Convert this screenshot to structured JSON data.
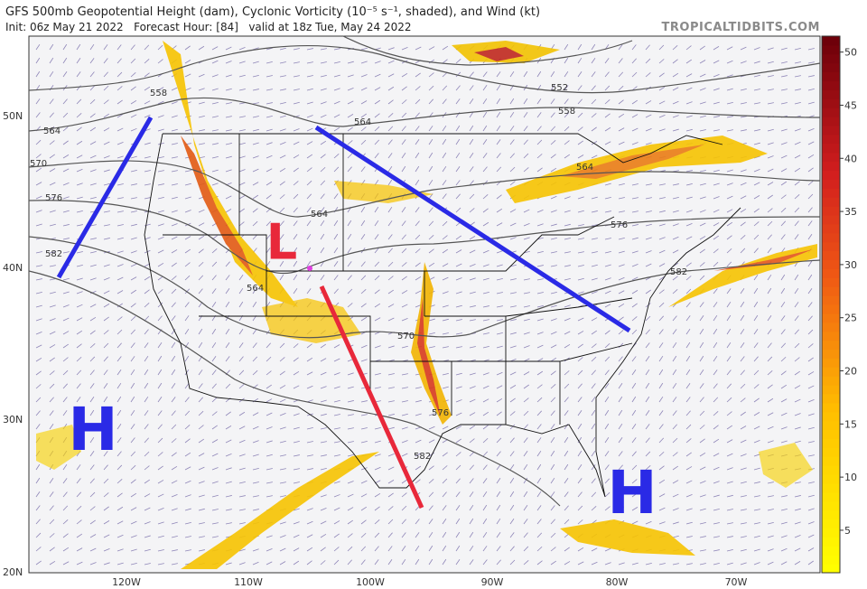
{
  "header": {
    "title": "GFS 500mb Geopotential Height (dam), Cyclonic Vorticity (10⁻⁵ s⁻¹, shaded), and Wind (kt)",
    "subtitle": "Init: 06z May 21 2022   Forecast Hour: [84]   valid at 18z Tue, May 24 2022",
    "site": "TROPICALTIDBITS.COM"
  },
  "map": {
    "latitude_labels": [
      "50N",
      "40N",
      "30N",
      "20N"
    ],
    "longitude_labels": [
      "120W",
      "110W",
      "100W",
      "90W",
      "80W",
      "70W"
    ],
    "contour_labels": [
      "558",
      "564",
      "570",
      "576",
      "582",
      "564",
      "564",
      "564",
      "570",
      "576",
      "582",
      "552",
      "558",
      "564",
      "576",
      "582"
    ],
    "annotations": [
      "L",
      "H",
      "H"
    ]
  },
  "colorbar": {
    "range": [
      1,
      51.5
    ],
    "ticks": [
      5,
      10,
      15,
      20,
      25,
      30,
      35,
      40,
      45,
      50
    ]
  }
}
